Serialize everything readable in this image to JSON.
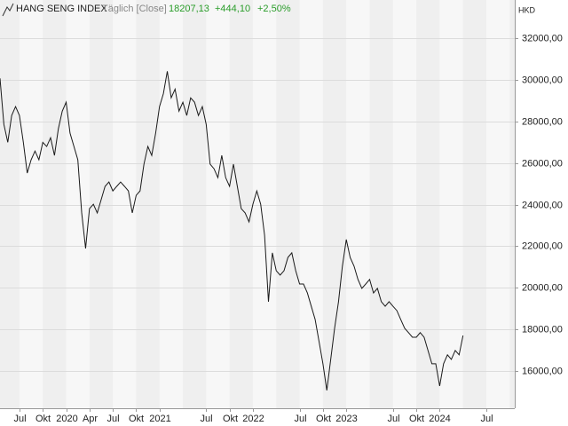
{
  "chart_data": {
    "type": "line",
    "title": "HANG SENG INDEX",
    "subtitle": "Täglich [Close]",
    "last": "18207,13",
    "change": "+444,10",
    "change_pct": "+2,50%",
    "currency": "HKD",
    "categories": [
      null,
      null,
      null,
      null,
      null,
      "Jul",
      null,
      null,
      null,
      null,
      null,
      "Okt",
      null,
      null,
      null,
      null,
      null,
      "2020",
      null,
      null,
      null,
      null,
      null,
      "Apr",
      null,
      null,
      null,
      null,
      null,
      "Jul",
      null,
      null,
      null,
      null,
      null,
      "Okt",
      null,
      null,
      null,
      null,
      null,
      "2021",
      null,
      null,
      null,
      null,
      null,
      null,
      null,
      null,
      null,
      null,
      null,
      "Jul",
      null,
      null,
      null,
      null,
      null,
      "Okt",
      null,
      null,
      null,
      null,
      null,
      "2022",
      null,
      null,
      null,
      null,
      null,
      null,
      null,
      null,
      null,
      null,
      null,
      "Jul",
      null,
      null,
      null,
      null,
      null,
      "Okt",
      null,
      null,
      null,
      null,
      null,
      "2023",
      null,
      null,
      null,
      null,
      null,
      null,
      null,
      null,
      null,
      null,
      null,
      "Jul",
      null,
      null,
      null,
      null,
      null,
      "Okt",
      null,
      null,
      null,
      null,
      null,
      "2024",
      null,
      null,
      null,
      null,
      null,
      null,
      null,
      null,
      null,
      null,
      null,
      "Jul"
    ],
    "series": [
      {
        "name": "HANG SENG INDEX",
        "color": "#1a1a1a",
        "values": [
          30080,
          27860,
          27000,
          28290,
          28720,
          28290,
          27000,
          25520,
          26160,
          26580,
          26160,
          27000,
          26800,
          27220,
          26370,
          27650,
          28500,
          28930,
          27440,
          26800,
          26160,
          23600,
          21890,
          23810,
          24020,
          23600,
          24240,
          24880,
          25090,
          24660,
          24880,
          25090,
          24880,
          24660,
          23600,
          24450,
          24660,
          25950,
          26800,
          26370,
          27440,
          28720,
          29350,
          30420,
          29140,
          29560,
          28500,
          28930,
          28290,
          29140,
          28930,
          28290,
          28720,
          27860,
          25950,
          25730,
          25300,
          26370,
          25300,
          24880,
          25950,
          24880,
          23810,
          23600,
          23170,
          24020,
          24660,
          24020,
          22530,
          19330,
          21680,
          20820,
          20610,
          20820,
          21460,
          21680,
          20820,
          20180,
          20180,
          19750,
          19110,
          18470,
          17410,
          16340,
          15060,
          16550,
          18050,
          19330,
          21040,
          22320,
          21460,
          21040,
          20400,
          19970,
          20180,
          20400,
          19750,
          19970,
          19330,
          19110,
          19330,
          19110,
          18900,
          18470,
          18050,
          17840,
          17620,
          17620,
          17840,
          17620,
          16980,
          16340,
          16340,
          15270,
          16340,
          16770,
          16550,
          16980,
          16770,
          17700,
          null,
          null,
          null,
          null,
          null,
          null
        ]
      }
    ],
    "ylim": [
      14200,
      33850
    ],
    "yticks": [
      {
        "value": 16000,
        "label": "16000,00"
      },
      {
        "value": 18000,
        "label": "18000,00"
      },
      {
        "value": 20000,
        "label": "20000,00"
      },
      {
        "value": 22000,
        "label": "22000,00"
      },
      {
        "value": 24000,
        "label": "24000,00"
      },
      {
        "value": 26000,
        "label": "26000,00"
      },
      {
        "value": 28000,
        "label": "28000,00"
      },
      {
        "value": 30000,
        "label": "30000,00"
      },
      {
        "value": 32000,
        "label": "32000,00"
      }
    ],
    "grid": true
  }
}
